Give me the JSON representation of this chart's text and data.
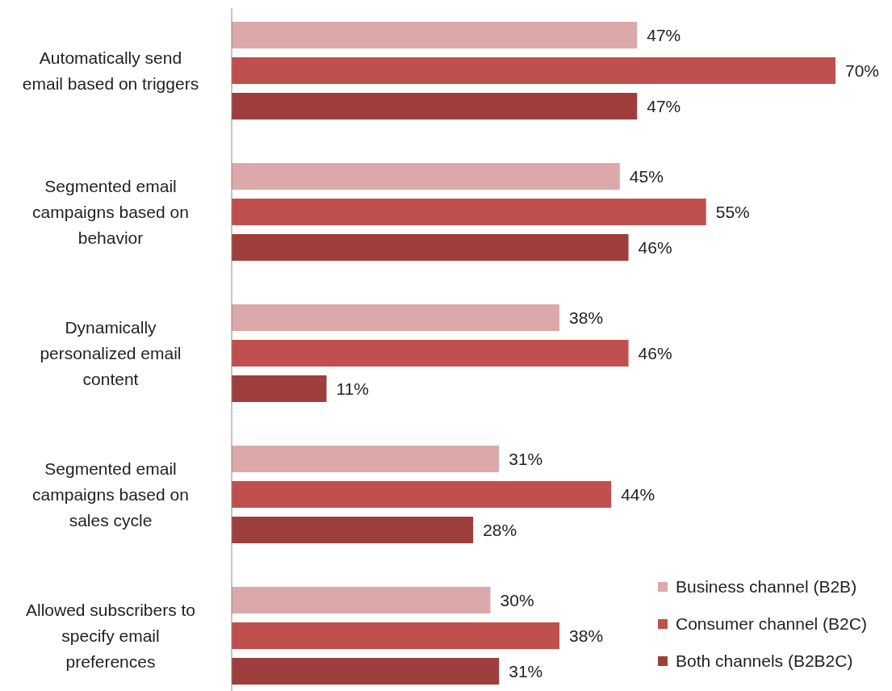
{
  "chart_data": {
    "type": "bar",
    "orientation": "horizontal",
    "legend": "bottom right",
    "tick_labels": "y",
    "categories": [
      "Automatically send\nemail based on triggers",
      "Segmented email\ncampaigns based on\nbehavior",
      "Dynamically\npersonalized email\ncontent",
      "Segmented email\ncampaigns based on\nsales cycle",
      "Allowed subscribers to\nspecify email\npreferences"
    ],
    "series": [
      {
        "name": "Business channel (B2B)",
        "color": "#dba9a9",
        "values": [
          47,
          45,
          38,
          31,
          30
        ],
        "value_labels": [
          "47%",
          "45%",
          "38%",
          "31%",
          "30%"
        ]
      },
      {
        "name": "Consumer channel (B2C)",
        "color": "#c0504d",
        "values": [
          70,
          55,
          46,
          44,
          38
        ],
        "value_labels": [
          "70%",
          "55%",
          "46%",
          "44%",
          "38%"
        ]
      },
      {
        "name": "Both channels (B2B2C)",
        "color": "#9e3f3d",
        "values": [
          47,
          46,
          11,
          28,
          31
        ],
        "value_labels": [
          "47%",
          "46%",
          "11%",
          "28%",
          "31%"
        ]
      }
    ]
  }
}
